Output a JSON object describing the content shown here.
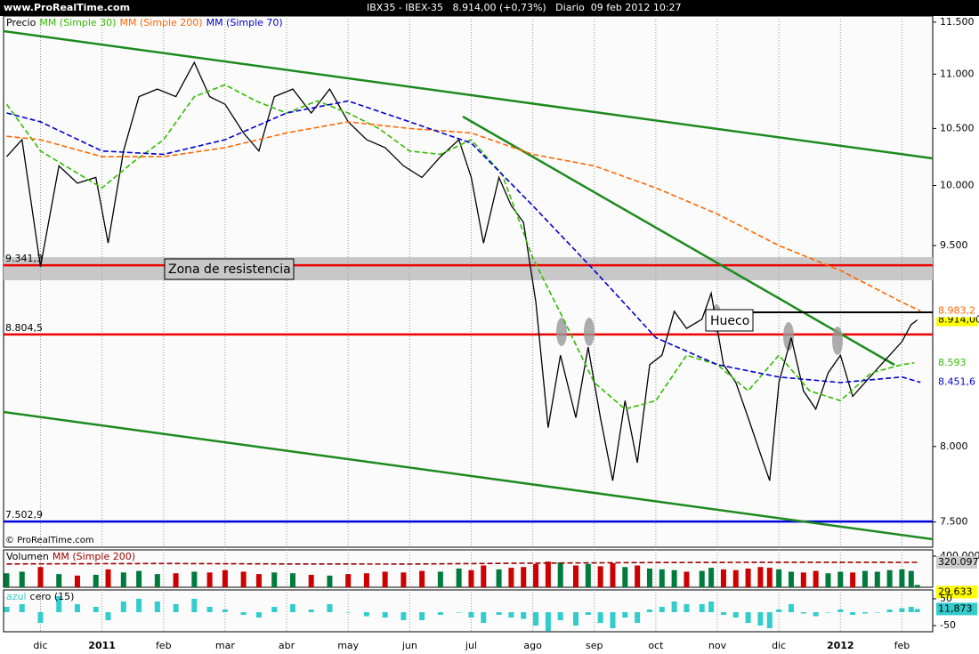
{
  "header": {
    "site": "www.ProRealTime.com",
    "title": "IBX35 - IBEX-35   8.914,00 (+0,73%)   Diario  09 feb 2012 10:27"
  },
  "chart_data": [
    {
      "type": "line",
      "log_scale": true,
      "xlim": [
        -0.6,
        14.5
      ],
      "xticks": [
        {
          "value": 0,
          "label": "dic"
        },
        {
          "value": 1,
          "label": "2011",
          "bold": true
        },
        {
          "value": 2,
          "label": "feb"
        },
        {
          "value": 3,
          "label": "mar"
        },
        {
          "value": 4,
          "label": "abr"
        },
        {
          "value": 5,
          "label": "may"
        },
        {
          "value": 6,
          "label": "jun"
        },
        {
          "value": 7,
          "label": "jul"
        },
        {
          "value": 8,
          "label": "ago"
        },
        {
          "value": 9,
          "label": "sep"
        },
        {
          "value": 10,
          "label": "oct"
        },
        {
          "value": 11,
          "label": "nov"
        },
        {
          "value": 12,
          "label": "dic"
        },
        {
          "value": 13,
          "label": "2012",
          "bold": true
        },
        {
          "value": 14,
          "label": "feb"
        }
      ],
      "ylim": [
        7340,
        11560
      ],
      "yticks": [
        {
          "value": 11500,
          "label": "11.500"
        },
        {
          "value": 11000,
          "label": "11.000"
        },
        {
          "value": 10500,
          "label": "10.500"
        },
        {
          "value": 10000,
          "label": "10.000"
        },
        {
          "value": 9500,
          "label": "9.500"
        },
        {
          "value": 8000,
          "label": "8.000"
        },
        {
          "value": 7500,
          "label": "7.500"
        }
      ],
      "series": [
        {
          "name": "Precio",
          "color": "#000000",
          "label_fill": "#ffff00",
          "last_label": "8.914,00",
          "x": [
            -0.55,
            -0.3,
            0,
            0.3,
            0.6,
            0.9,
            1.1,
            1.35,
            1.6,
            1.9,
            2.2,
            2.5,
            2.75,
            3,
            3.3,
            3.55,
            3.8,
            4.1,
            4.4,
            4.7,
            5,
            5.3,
            5.6,
            5.9,
            6.2,
            6.5,
            6.8,
            7,
            7.2,
            7.45,
            7.65,
            7.85,
            8.05,
            8.25,
            8.45,
            8.7,
            8.9,
            9.1,
            9.3,
            9.5,
            9.7,
            9.9,
            10.1,
            10.3,
            10.5,
            10.75,
            10.9,
            11.1,
            11.3,
            11.5,
            11.7,
            11.85,
            12,
            12.2,
            12.4,
            12.6,
            12.8,
            13,
            13.2,
            13.4,
            13.6,
            13.8,
            14,
            14.15,
            14.25
          ],
          "values": [
            10250,
            10400,
            9330,
            10170,
            10020,
            10070,
            9520,
            10300,
            10790,
            10860,
            10790,
            11110,
            10790,
            10720,
            10460,
            10300,
            10790,
            10860,
            10640,
            10860,
            10560,
            10400,
            10330,
            10170,
            10070,
            10250,
            10400,
            10070,
            9520,
            10070,
            9830,
            9690,
            9050,
            8130,
            8650,
            8200,
            8710,
            8200,
            7770,
            8320,
            7890,
            8580,
            8650,
            8980,
            8850,
            8920,
            9120,
            8580,
            8450,
            8200,
            7950,
            7770,
            8450,
            8780,
            8390,
            8260,
            8520,
            8650,
            8350,
            8450,
            8550,
            8650,
            8750,
            8880,
            8914
          ]
        },
        {
          "name": "MM (Simple 30)",
          "color": "#33bb00",
          "last_label": "8.593",
          "x": [
            -0.55,
            0,
            1,
            1.5,
            2,
            2.5,
            3,
            3.5,
            4,
            4.5,
            5,
            5.5,
            6,
            6.5,
            7,
            7.5,
            8,
            8.5,
            9,
            9.5,
            10,
            10.5,
            11,
            11.5,
            12,
            12.5,
            13,
            13.5,
            14,
            14.2
          ],
          "values": [
            10720,
            10300,
            9980,
            10200,
            10400,
            10790,
            10900,
            10750,
            10640,
            10750,
            10640,
            10500,
            10300,
            10270,
            10400,
            10100,
            9400,
            8920,
            8450,
            8260,
            8320,
            8650,
            8580,
            8390,
            8650,
            8390,
            8320,
            8520,
            8580,
            8593
          ]
        },
        {
          "name": "MM (Simple 200)",
          "color": "#ff6600",
          "last_label": "8.983,2",
          "x": [
            -0.55,
            0,
            1,
            2,
            3,
            4,
            5,
            6,
            7,
            8,
            9,
            10,
            11,
            12,
            13,
            14,
            14.3
          ],
          "values": [
            10430,
            10400,
            10250,
            10250,
            10330,
            10460,
            10560,
            10500,
            10460,
            10270,
            10170,
            9980,
            9760,
            9500,
            9300,
            9050,
            8983.2
          ]
        },
        {
          "name": "MM (Simple 70)",
          "color": "#0000cc",
          "last_label": "8.451,6",
          "x": [
            -0.55,
            0,
            1,
            2,
            3,
            4,
            5,
            6,
            7,
            8,
            9,
            10,
            11,
            12,
            13,
            14,
            14.3
          ],
          "values": [
            10640,
            10560,
            10300,
            10270,
            10400,
            10640,
            10750,
            10560,
            10370,
            9830,
            9300,
            8780,
            8580,
            8490,
            8450,
            8490,
            8451.6
          ]
        }
      ],
      "levels": [
        {
          "value": 9341.3,
          "label": "9.341,3",
          "color": "#ee0000"
        },
        {
          "value": 8804.5,
          "label": "8.804,5",
          "color": "#ee0000"
        },
        {
          "value": 7502.9,
          "label": "7.502,9",
          "color": "#0000dd"
        }
      ],
      "annotations": [
        "Zona de resistencia",
        "Hueco"
      ],
      "copyright": "© ProRealTime.com"
    },
    {
      "type": "bar",
      "name": "Volumen",
      "up_color": "#007a3d",
      "down_color": "#cc0000",
      "label_fill": "#ffff00",
      "last_label": "29.633",
      "x": [
        -0.55,
        -0.3,
        0,
        0.3,
        0.6,
        0.9,
        1.1,
        1.35,
        1.6,
        1.9,
        2.2,
        2.5,
        2.75,
        3,
        3.3,
        3.55,
        3.8,
        4.1,
        4.4,
        4.7,
        5,
        5.3,
        5.6,
        5.9,
        6.2,
        6.5,
        6.8,
        7,
        7.2,
        7.45,
        7.65,
        7.85,
        8.05,
        8.25,
        8.45,
        8.7,
        8.9,
        9.1,
        9.3,
        9.5,
        9.7,
        9.9,
        10.1,
        10.3,
        10.5,
        10.75,
        10.9,
        11.1,
        11.3,
        11.5,
        11.7,
        11.85,
        12,
        12.2,
        12.4,
        12.6,
        12.8,
        13,
        13.2,
        13.4,
        13.6,
        13.8,
        14,
        14.15,
        14.25
      ],
      "values": [
        180000,
        200000,
        260000,
        170000,
        150000,
        160000,
        230000,
        190000,
        210000,
        170000,
        180000,
        200000,
        190000,
        220000,
        200000,
        170000,
        190000,
        180000,
        160000,
        150000,
        170000,
        180000,
        200000,
        190000,
        210000,
        200000,
        240000,
        220000,
        280000,
        230000,
        250000,
        260000,
        300000,
        330000,
        320000,
        280000,
        300000,
        270000,
        310000,
        260000,
        280000,
        240000,
        230000,
        220000,
        200000,
        210000,
        250000,
        230000,
        220000,
        240000,
        260000,
        250000,
        230000,
        200000,
        190000,
        210000,
        180000,
        200000,
        190000,
        210000,
        200000,
        220000,
        230000,
        210000,
        29633
      ],
      "series": [
        {
          "name": "MM (Simple 200)",
          "color": "#990000",
          "label_fill": "#cccccc",
          "last_label": "320.097",
          "x": [
            -0.55,
            2,
            4,
            6,
            8,
            10,
            12,
            14.25
          ],
          "values": [
            300000,
            305000,
            300000,
            298000,
            310000,
            318000,
            321000,
            320097
          ]
        }
      ],
      "ylim": [
        0,
        480000
      ],
      "yticks": [
        {
          "value": 400000,
          "label": "400.000"
        }
      ]
    },
    {
      "type": "bar",
      "name": "azul",
      "subtitle": "cero (15)",
      "color": "#33cccc",
      "label_fill": "#33cccc",
      "last_label": "11,873",
      "x": [
        -0.55,
        -0.3,
        0,
        0.3,
        0.6,
        0.9,
        1.1,
        1.35,
        1.6,
        1.9,
        2.2,
        2.5,
        2.75,
        3,
        3.3,
        3.55,
        3.8,
        4.1,
        4.4,
        4.7,
        5,
        5.3,
        5.6,
        5.9,
        6.2,
        6.5,
        6.8,
        7,
        7.2,
        7.45,
        7.65,
        7.85,
        8.05,
        8.25,
        8.45,
        8.7,
        8.9,
        9.1,
        9.3,
        9.5,
        9.7,
        9.9,
        10.1,
        10.3,
        10.5,
        10.75,
        10.9,
        11.1,
        11.3,
        11.5,
        11.7,
        11.85,
        12,
        12.2,
        12.4,
        12.6,
        12.8,
        13,
        13.2,
        13.4,
        13.6,
        13.8,
        14,
        14.15,
        14.25
      ],
      "values": [
        20,
        30,
        -40,
        60,
        30,
        20,
        -30,
        40,
        50,
        40,
        30,
        50,
        20,
        10,
        -10,
        -20,
        20,
        30,
        10,
        30,
        0,
        -15,
        -20,
        -30,
        -30,
        -10,
        0,
        -20,
        -40,
        -10,
        -20,
        -25,
        -50,
        -70,
        -30,
        -50,
        -10,
        -40,
        -60,
        -20,
        -40,
        10,
        20,
        40,
        30,
        30,
        40,
        -10,
        -20,
        -40,
        -50,
        -60,
        10,
        30,
        -5,
        -15,
        0,
        10,
        -10,
        -5,
        0,
        10,
        15,
        20,
        11.873
      ],
      "ylim": [
        -73,
        83
      ],
      "yticks": [
        50,
        -50
      ]
    }
  ]
}
